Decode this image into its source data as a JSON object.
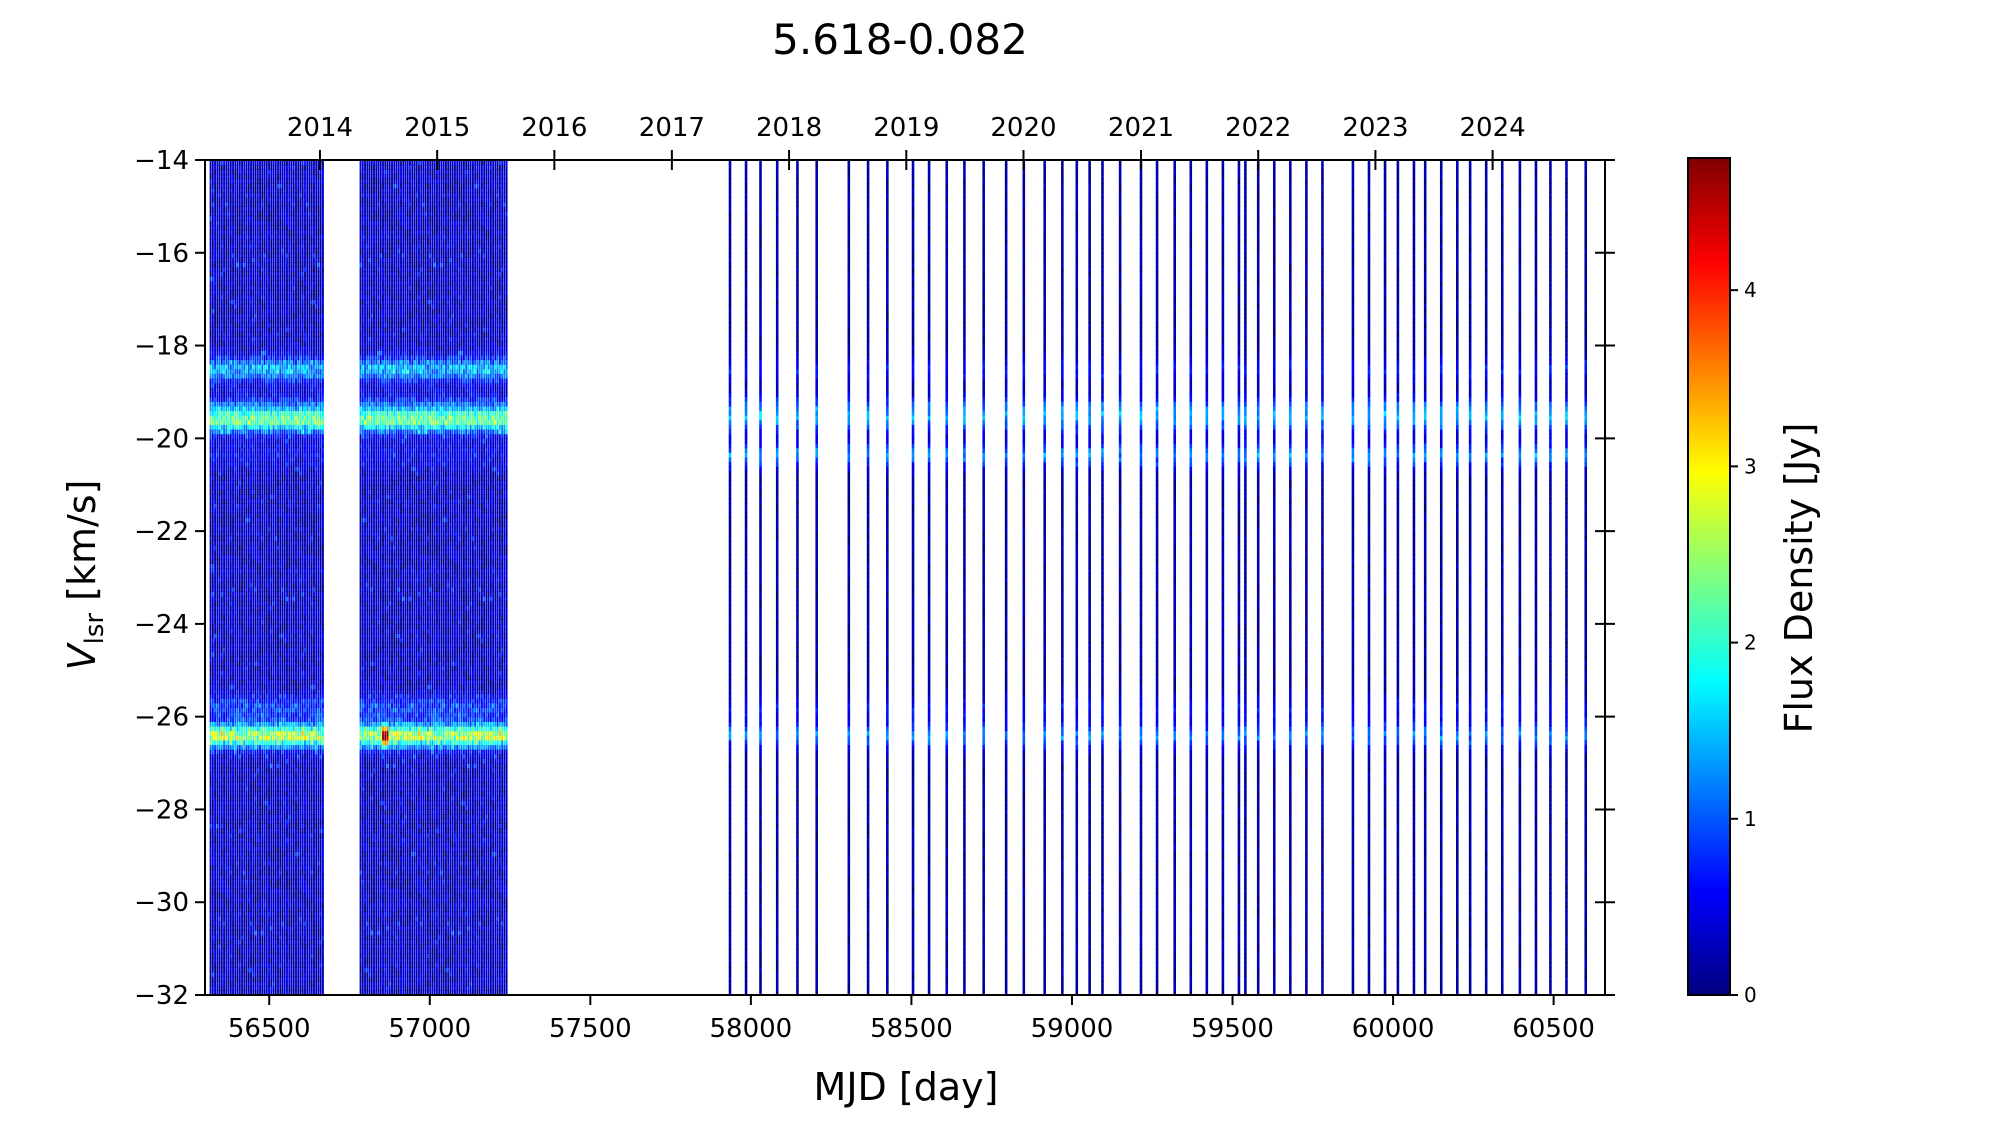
{
  "chart_data": {
    "type": "heatmap",
    "title": "5.618-0.082",
    "xlabel": "MJD [day]",
    "ylabel_main": "V",
    "ylabel_sub": "lsr",
    "ylabel_unit": " [km/s]",
    "xlim": [
      56300,
      60660
    ],
    "ylim": [
      -32,
      -14
    ],
    "x_ticks": [
      56500,
      57000,
      57500,
      58000,
      58500,
      59000,
      59500,
      60000,
      60500
    ],
    "y_ticks": [
      -32,
      -30,
      -28,
      -26,
      -24,
      -22,
      -20,
      -18,
      -16,
      -14
    ],
    "top_axis": {
      "labels": [
        "2014",
        "2015",
        "2016",
        "2017",
        "2018",
        "2019",
        "2020",
        "2021",
        "2022",
        "2023",
        "2024"
      ],
      "mjd": [
        56658,
        57023,
        57388,
        57754,
        58119,
        58484,
        58849,
        59215,
        59580,
        59945,
        60310
      ]
    },
    "colorbar": {
      "label": "Flux Density [Jy]",
      "min": 0,
      "max": 4.75,
      "ticks": [
        0,
        1,
        2,
        3,
        4
      ],
      "colormap": "jet",
      "colors": [
        "#00007f",
        "#0000ff",
        "#007fff",
        "#00ffff",
        "#7fff7f",
        "#ffff00",
        "#ff7f00",
        "#ff0000",
        "#7f0000"
      ]
    },
    "grid": false,
    "dense_epochs": [
      {
        "start": 56318,
        "end": 56668,
        "step": 7
      },
      {
        "start": 56785,
        "end": 57245,
        "step": 7
      }
    ],
    "epochs": [
      57935,
      57985,
      58030,
      58082,
      58145,
      58205,
      58305,
      58365,
      58425,
      58505,
      58555,
      58610,
      58665,
      58725,
      58795,
      58850,
      58915,
      58970,
      59015,
      59055,
      59095,
      59150,
      59215,
      59265,
      59320,
      59370,
      59420,
      59470,
      59520,
      59540,
      59580,
      59630,
      59680,
      59730,
      59780,
      59875,
      59925,
      59975,
      60015,
      60065,
      60100,
      60150,
      60200,
      60240,
      60290,
      60340,
      60395,
      60445,
      60490,
      60540,
      60600
    ],
    "maser_features": [
      {
        "velocity": -26.4,
        "peak_early": 2.4,
        "peak_late": 1.05
      },
      {
        "velocity": -19.6,
        "peak_early": 1.9,
        "peak_late": 1.0
      },
      {
        "velocity": -20.35,
        "peak_early": 0.25,
        "peak_late": 1.1
      },
      {
        "velocity": -18.5,
        "peak_early": 1.15,
        "peak_late": 0.5
      },
      {
        "velocity": -25.8,
        "peak_early": 0.6,
        "peak_late": 0.45
      },
      {
        "velocity": -19.3,
        "peak_early": 0.5,
        "peak_late": 0.7
      }
    ],
    "flare": {
      "mjd": 56862,
      "velocity": -26.4,
      "value": 4.6
    }
  }
}
